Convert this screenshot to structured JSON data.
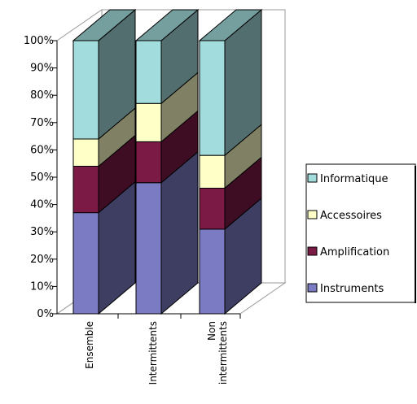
{
  "chart_data": {
    "type": "bar",
    "stacked": true,
    "percent_stacked": true,
    "three_d": true,
    "categories": [
      "Ensemble",
      "Intermittents",
      "Non\nintermittents"
    ],
    "series": [
      {
        "name": "Instruments",
        "color": "#7b7bc4",
        "values": [
          37,
          48,
          31
        ]
      },
      {
        "name": "Amplification",
        "color": "#7b1a45",
        "values": [
          17,
          15,
          15
        ]
      },
      {
        "name": "Accessoires",
        "color": "#ffffc8",
        "values": [
          10,
          14,
          12
        ]
      },
      {
        "name": "Informatique",
        "color": "#a3dcdc",
        "values": [
          36,
          23,
          42
        ]
      }
    ],
    "y_ticks": [
      "0%",
      "10%",
      "20%",
      "30%",
      "40%",
      "50%",
      "60%",
      "70%",
      "80%",
      "90%",
      "100%"
    ],
    "ylim": [
      0,
      100
    ],
    "legend_position": "right",
    "legend_order": [
      "Informatique",
      "Accessoires",
      "Amplification",
      "Instruments"
    ],
    "grid": false,
    "colors": {
      "wall": "#ffffff",
      "floor": "#ffffff",
      "wall_border": "#999999"
    }
  }
}
